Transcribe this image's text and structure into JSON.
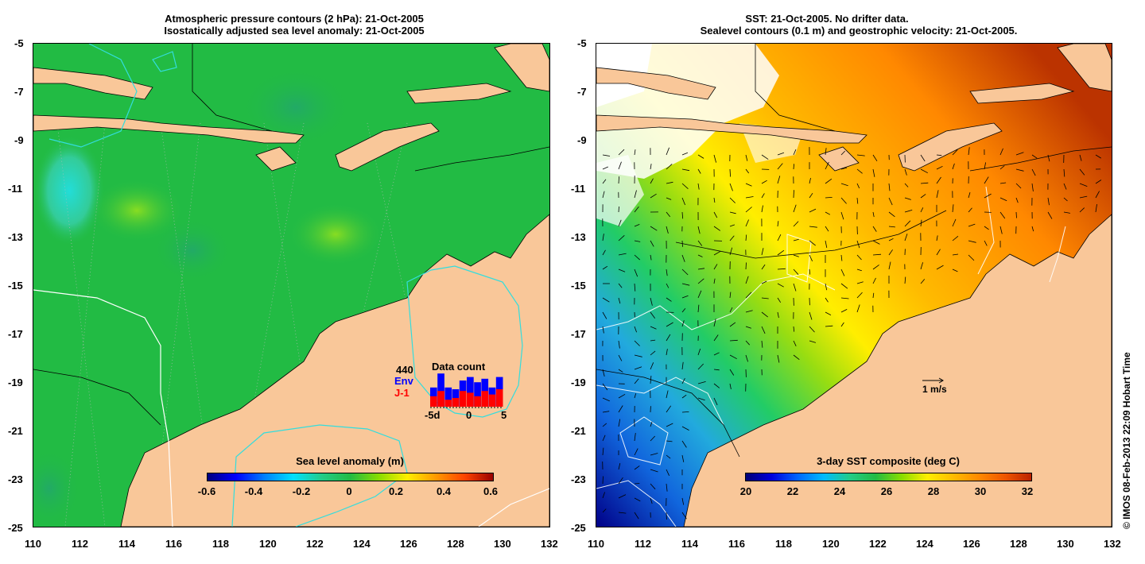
{
  "left_panel": {
    "title_line1": "Atmospheric pressure contours (2 hPa): 21-Oct-2005",
    "title_line2": "Isostatically adjusted sea level anomaly: 21-Oct-2005",
    "colorbar": {
      "title": "Sea level anomaly (m)",
      "ticks": [
        "-0.6",
        "-0.4",
        "-0.2",
        "0",
        "0.2",
        "0.4",
        "0.6"
      ]
    },
    "inset": {
      "count": "440",
      "series1": "Env",
      "series2": "J-1",
      "title": "Data count",
      "x_ticks": [
        "-5d",
        "0",
        "5"
      ],
      "series1_color": "#0000ff",
      "series2_color": "#ff0000",
      "bars_total": [
        0.55,
        0.95,
        0.55,
        0.5,
        0.75,
        0.85,
        0.7,
        0.8,
        0.55,
        0.85
      ],
      "bars_red": [
        0.3,
        0.45,
        0.2,
        0.25,
        0.45,
        0.4,
        0.3,
        0.45,
        0.35,
        0.5
      ]
    }
  },
  "right_panel": {
    "title_line1": "SST: 21-Oct-2005. No drifter data.",
    "title_line2": "Sealevel contours (0.1 m) and geostrophic velocity: 21-Oct-2005.",
    "colorbar": {
      "title": "3-day SST composite (deg C)",
      "ticks": [
        "20",
        "22",
        "24",
        "26",
        "28",
        "30",
        "32"
      ]
    },
    "velocity_scale": "1 m/s"
  },
  "axes": {
    "x_ticks": [
      "110",
      "112",
      "114",
      "116",
      "118",
      "120",
      "122",
      "124",
      "126",
      "128",
      "130",
      "132"
    ],
    "y_ticks": [
      "-5",
      "-7",
      "-9",
      "-11",
      "-13",
      "-15",
      "-17",
      "-19",
      "-21",
      "-23",
      "-25"
    ]
  },
  "copyright": "© IMOS 08-Feb-2013 22:09 Hobart Time",
  "colors": {
    "land": "#f9c799",
    "ocean_sla": "#22bb44",
    "contour_cyan": "#33dddd"
  }
}
